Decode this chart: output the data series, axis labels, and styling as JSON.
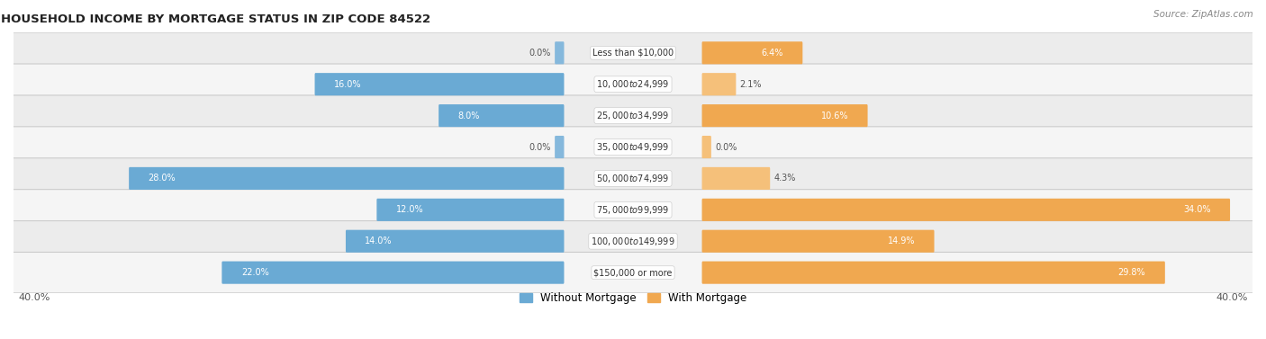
{
  "title": "HOUSEHOLD INCOME BY MORTGAGE STATUS IN ZIP CODE 84522",
  "source": "Source: ZipAtlas.com",
  "categories": [
    "Less than $10,000",
    "$10,000 to $24,999",
    "$25,000 to $34,999",
    "$35,000 to $49,999",
    "$50,000 to $74,999",
    "$75,000 to $99,999",
    "$100,000 to $149,999",
    "$150,000 or more"
  ],
  "without_mortgage": [
    0.0,
    16.0,
    8.0,
    0.0,
    28.0,
    12.0,
    14.0,
    22.0
  ],
  "with_mortgage": [
    6.4,
    2.1,
    10.6,
    0.0,
    4.3,
    34.0,
    14.9,
    29.8
  ],
  "color_without": "#85b8dc",
  "color_with": "#f5c07a",
  "color_without_large": "#6aaad4",
  "color_with_large": "#f0a850",
  "row_color_light": "#e8e8e8",
  "row_color_dark": "#d8d8d8",
  "xlim": 40.0,
  "legend_without": "Without Mortgage",
  "legend_with": "With Mortgage",
  "bar_height": 0.62,
  "label_threshold": 5.0
}
